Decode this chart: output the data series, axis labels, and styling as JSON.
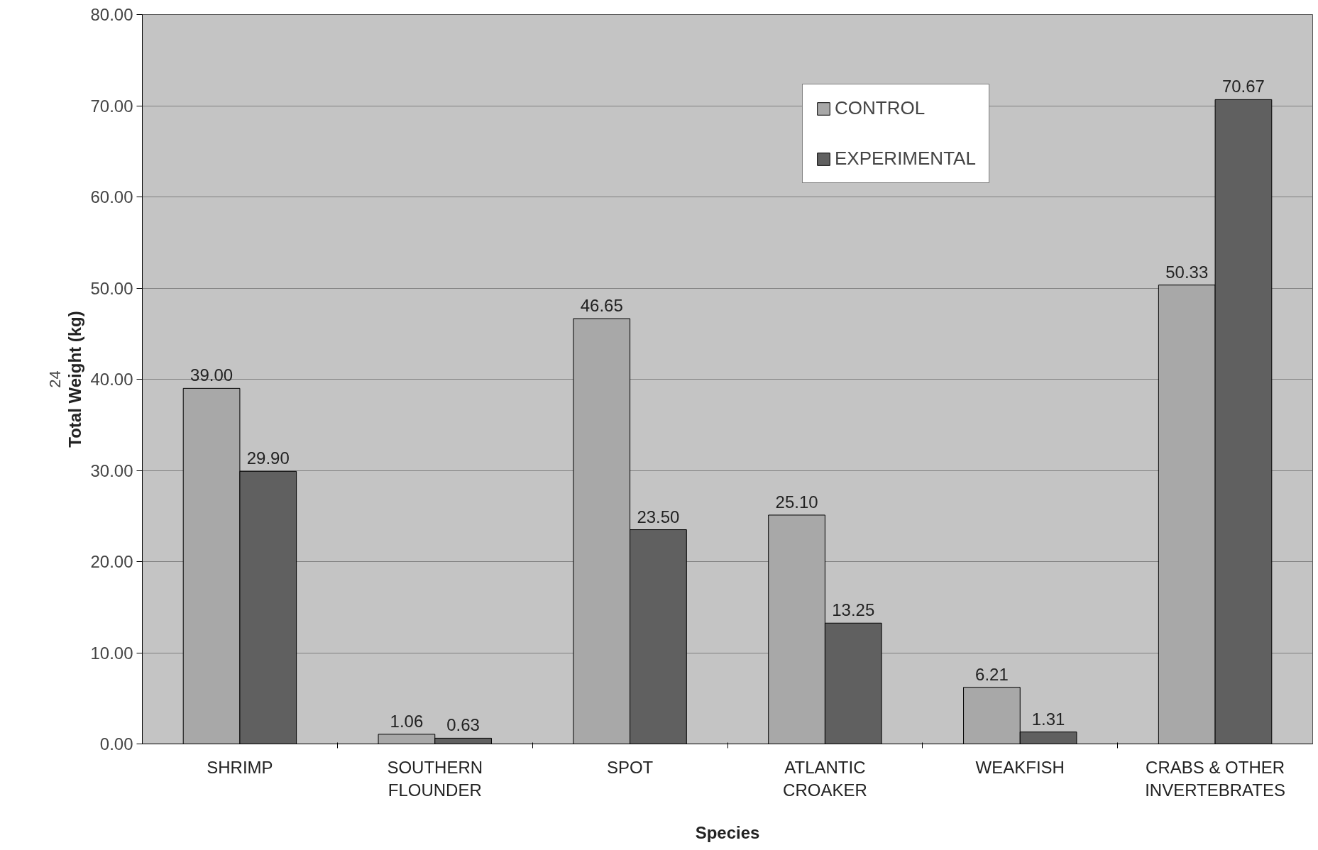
{
  "chart_data": {
    "type": "bar",
    "xlabel": "Species",
    "ylabel": "Total Weight (kg)",
    "categories": [
      "SHRIMP",
      "SOUTHERN\nFLOUNDER",
      "SPOT",
      "ATLANTIC\nCROAKER",
      "WEAKFISH",
      "CRABS & OTHER\nINVERTEBRATES"
    ],
    "series": [
      {
        "name": "CONTROL",
        "color": "#a8a8a8",
        "values": [
          39.0,
          1.06,
          46.65,
          25.1,
          6.21,
          50.33
        ]
      },
      {
        "name": "EXPERIMENTAL",
        "color": "#606060",
        "values": [
          29.9,
          0.63,
          23.5,
          13.25,
          1.31,
          70.67
        ]
      }
    ],
    "ylim": [
      0,
      80
    ],
    "yticks": [
      {
        "value": 0,
        "label": "0.00"
      },
      {
        "value": 10,
        "label": "10.00"
      },
      {
        "value": 20,
        "label": "20.00"
      },
      {
        "value": 30,
        "label": "30.00"
      },
      {
        "value": 40,
        "label": "40.00"
      },
      {
        "value": 50,
        "label": "50.00"
      },
      {
        "value": 60,
        "label": "60.00"
      },
      {
        "value": 70,
        "label": "70.00"
      },
      {
        "value": 80,
        "label": "80.00"
      }
    ],
    "value_labels": [
      [
        "39.00",
        "1.06",
        "46.65",
        "25.10",
        "6.21",
        "50.33"
      ],
      [
        "29.90",
        "0.63",
        "23.50",
        "13.25",
        "1.31",
        "70.67"
      ]
    ],
    "grid": "y",
    "legend": "top right",
    "annotations": [
      "24"
    ]
  }
}
